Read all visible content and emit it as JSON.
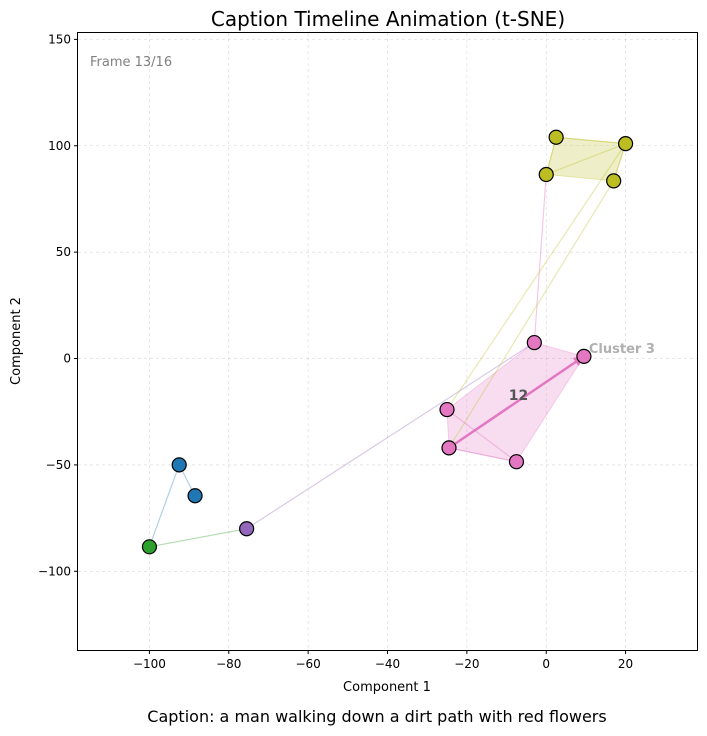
{
  "chart_data": {
    "type": "scatter",
    "title": "Caption Timeline Animation (t-SNE)",
    "xlabel": "Component 1",
    "ylabel": "Component 2",
    "xlim": [
      -118,
      38
    ],
    "ylim": [
      -137,
      153
    ],
    "xticks": [
      -100,
      -80,
      -60,
      -40,
      -20,
      0,
      20
    ],
    "yticks": [
      -100,
      -50,
      0,
      50,
      100,
      150
    ],
    "xtick_labels": [
      "−100",
      "−80",
      "−60",
      "−40",
      "−20",
      "0",
      "20"
    ],
    "ytick_labels": [
      "−100",
      "−50",
      "0",
      "50",
      "100",
      "150"
    ],
    "grid": true,
    "frame_label": "Frame 13/16",
    "caption": "Caption: a man walking down a dirt path with red flowers",
    "current_index_label": "12",
    "cluster_label": {
      "text": "Cluster 3",
      "x": 10.5,
      "y": 3
    },
    "colors": {
      "blue": "#1f77b4",
      "green": "#2ca02c",
      "purple": "#9467bd",
      "olive": "#bcbd22",
      "pink": "#e377c2"
    },
    "points": [
      {
        "x": -92.5,
        "y": -50,
        "color": "blue"
      },
      {
        "x": -88.5,
        "y": -64.5,
        "color": "blue"
      },
      {
        "x": -100,
        "y": -88.5,
        "color": "green"
      },
      {
        "x": -75.5,
        "y": -80,
        "color": "purple"
      },
      {
        "x": -3,
        "y": 7.5,
        "color": "pink"
      },
      {
        "x": -24.5,
        "y": -42,
        "color": "pink"
      },
      {
        "x": -25,
        "y": -24,
        "color": "pink"
      },
      {
        "x": 0,
        "y": 86.5,
        "color": "olive"
      },
      {
        "x": 2.5,
        "y": 104,
        "color": "olive"
      },
      {
        "x": 20,
        "y": 101,
        "color": "olive"
      },
      {
        "x": 17,
        "y": 83.5,
        "color": "olive"
      },
      {
        "x": -7.5,
        "y": -48.5,
        "color": "pink"
      },
      {
        "x": 9.5,
        "y": 1,
        "color": "pink"
      }
    ],
    "trajectory_segments": [
      {
        "from": 1,
        "to": 0,
        "color": "blue",
        "opacity": 0.35
      },
      {
        "from": 0,
        "to": 2,
        "color": "blue",
        "opacity": 0.35
      },
      {
        "from": 2,
        "to": 3,
        "color": "green",
        "opacity": 0.35
      },
      {
        "from": 3,
        "to": 4,
        "color": "purple",
        "opacity": 0.35
      },
      {
        "from": 4,
        "to": 7,
        "color": "pink",
        "opacity": 0.4
      },
      {
        "from": 7,
        "to": 8,
        "color": "olive",
        "opacity": 0.35
      },
      {
        "from": 8,
        "to": 9,
        "color": "olive",
        "opacity": 0.35
      },
      {
        "from": 9,
        "to": 10,
        "color": "olive",
        "opacity": 0.35
      },
      {
        "from": 10,
        "to": 5,
        "color": "olive",
        "opacity": 0.35
      },
      {
        "from": 7,
        "to": 9,
        "color": "olive",
        "opacity": 0.35
      },
      {
        "from": 9,
        "to": 6,
        "color": "olive",
        "opacity": 0.35
      },
      {
        "from": 5,
        "to": 11,
        "color": "pink",
        "opacity": 0.4
      },
      {
        "from": 6,
        "to": 11,
        "color": "pink",
        "opacity": 0.4
      }
    ],
    "highlight_segment": {
      "from": 5,
      "to": 12,
      "color": "pink"
    },
    "cluster_hulls": [
      {
        "color": "olive",
        "points": [
          8,
          9,
          10,
          7
        ]
      },
      {
        "color": "pink",
        "points": [
          4,
          12,
          11,
          5,
          6
        ]
      }
    ]
  }
}
